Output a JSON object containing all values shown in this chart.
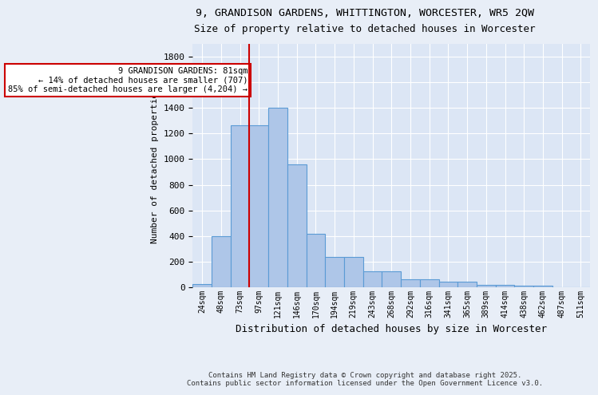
{
  "title_line1": "9, GRANDISON GARDENS, WHITTINGTON, WORCESTER, WR5 2QW",
  "title_line2": "Size of property relative to detached houses in Worcester",
  "xlabel": "Distribution of detached houses by size in Worcester",
  "ylabel": "Number of detached properties",
  "categories": [
    "24sqm",
    "48sqm",
    "73sqm",
    "97sqm",
    "121sqm",
    "146sqm",
    "170sqm",
    "194sqm",
    "219sqm",
    "243sqm",
    "268sqm",
    "292sqm",
    "316sqm",
    "341sqm",
    "365sqm",
    "389sqm",
    "414sqm",
    "438sqm",
    "462sqm",
    "487sqm",
    "511sqm"
  ],
  "values": [
    25,
    400,
    1265,
    1265,
    1400,
    960,
    415,
    235,
    235,
    125,
    125,
    65,
    65,
    42,
    42,
    20,
    20,
    12,
    12,
    0,
    0
  ],
  "bar_color": "#aec6e8",
  "bar_edge_color": "#5b9bd5",
  "red_line_x": 2,
  "annotation_text": "9 GRANDISON GARDENS: 81sqm\n← 14% of detached houses are smaller (707)\n85% of semi-detached houses are larger (4,204) →",
  "annotation_box_color": "#ffffff",
  "annotation_box_edge": "#cc0000",
  "annotation_text_color": "#000000",
  "vline_color": "#cc0000",
  "ylim": [
    0,
    1900
  ],
  "yticks": [
    0,
    200,
    400,
    600,
    800,
    1000,
    1200,
    1400,
    1600,
    1800
  ],
  "bg_color": "#e8eef7",
  "plot_bg_color": "#dce6f5",
  "footer_line1": "Contains HM Land Registry data © Crown copyright and database right 2025.",
  "footer_line2": "Contains public sector information licensed under the Open Government Licence v3.0."
}
